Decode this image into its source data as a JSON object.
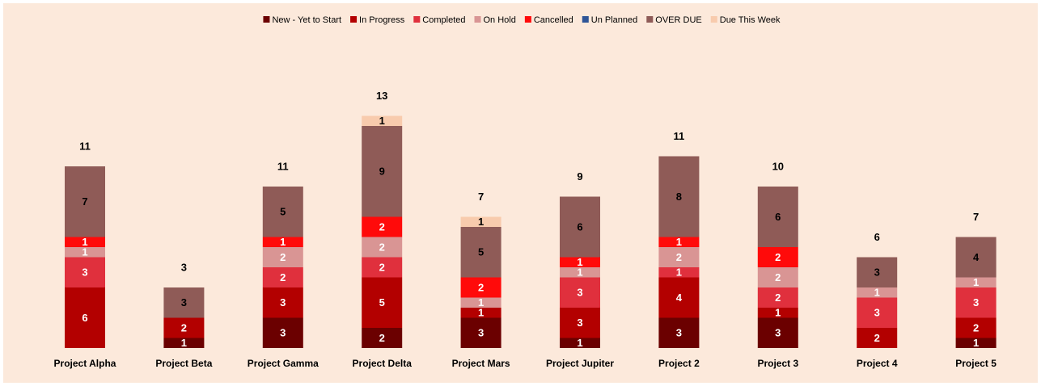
{
  "chart_data": {
    "type": "stacked_bar",
    "categories": [
      "Project Alpha",
      "Project Beta",
      "Project Gamma",
      "Project Delta",
      "Project Mars",
      "Project Jupiter",
      "Project 2",
      "Project 3",
      "Project 4",
      "Project 5"
    ],
    "series": [
      {
        "name": "New - Yet to Start",
        "color": "#6b0000",
        "values": [
          null,
          1,
          3,
          2,
          3,
          1,
          3,
          3,
          null,
          1
        ]
      },
      {
        "name": "In Progress",
        "color": "#b30000",
        "values": [
          6,
          2,
          3,
          5,
          1,
          3,
          4,
          1,
          2,
          2
        ]
      },
      {
        "name": "Completed",
        "color": "#e0303d",
        "values": [
          3,
          null,
          2,
          2,
          null,
          3,
          1,
          2,
          3,
          3
        ]
      },
      {
        "name": "On Hold",
        "color": "#d99594",
        "values": [
          1,
          null,
          2,
          2,
          1,
          1,
          2,
          2,
          1,
          1
        ]
      },
      {
        "name": "Cancelled",
        "color": "#ff0a0a",
        "values": [
          1,
          null,
          1,
          2,
          2,
          1,
          1,
          2,
          null,
          null
        ]
      },
      {
        "name": "Un Planned",
        "color": "#2f5597",
        "values": [
          null,
          null,
          null,
          null,
          null,
          null,
          null,
          null,
          null,
          null
        ]
      },
      {
        "name": "OVER DUE",
        "color": "#8f5b57",
        "values": [
          7,
          3,
          5,
          9,
          5,
          6,
          8,
          6,
          3,
          4
        ]
      },
      {
        "name": "Due This Week",
        "color": "#f8cbad",
        "values": [
          null,
          null,
          null,
          1,
          1,
          null,
          null,
          null,
          null,
          null
        ]
      }
    ],
    "totals": [
      11,
      3,
      11,
      13,
      7,
      9,
      11,
      10,
      6,
      7
    ],
    "legend": "top"
  }
}
